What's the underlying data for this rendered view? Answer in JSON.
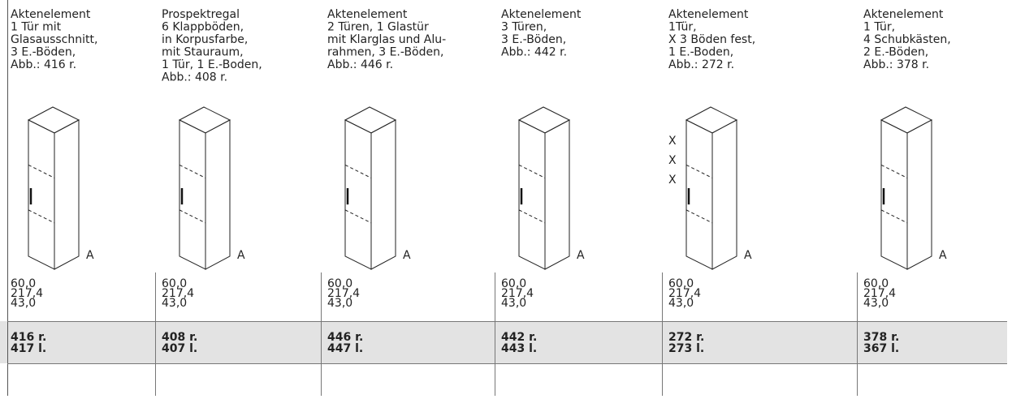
{
  "columns": [
    {
      "description": [
        "Aktenelement",
        "1 Tür mit",
        "Glasausschnitt,",
        "3 E.-Böden,",
        "Abb.: 416 r."
      ],
      "marker": "A",
      "dimensions": [
        "60,0",
        "217,4",
        "43,0"
      ],
      "article_numbers": [
        "416 r.",
        "417 l."
      ]
    },
    {
      "description": [
        "Prospektregal",
        "6 Klappböden,",
        "in Korpusfarbe,",
        "mit Stauraum,",
        "1 Tür, 1 E.-Boden,",
        "Abb.: 408 r."
      ],
      "marker": "A",
      "dimensions": [
        "60,0",
        "217,4",
        "43,0"
      ],
      "article_numbers": [
        "408 r.",
        "407 l."
      ]
    },
    {
      "description": [
        "Aktenelement",
        "2 Türen, 1 Glastür",
        "mit Klarglas und Alu-",
        "rahmen, 3 E.-Böden,",
        "Abb.: 446 r."
      ],
      "marker": "A",
      "dimensions": [
        "60,0",
        "217,4",
        "43,0"
      ],
      "article_numbers": [
        "446 r.",
        "447 l."
      ]
    },
    {
      "description": [
        "Aktenelement",
        "3 Türen,",
        "3 E.-Böden,",
        "Abb.: 442 r."
      ],
      "marker": "A",
      "dimensions": [
        "60,0",
        "217,4",
        "43,0"
      ],
      "article_numbers": [
        "442 r.",
        "443 l."
      ]
    },
    {
      "description": [
        "Aktenelement",
        "1Tür,",
        "X 3 Böden fest,",
        "1 E.-Boden,",
        "Abb.: 272 r."
      ],
      "marker": "A",
      "shelf_marks": [
        "X",
        "X",
        "X"
      ],
      "dimensions": [
        "60,0",
        "217,4",
        "43,0"
      ],
      "article_numbers": [
        "272 r.",
        "273 l."
      ]
    },
    {
      "description": [
        "Aktenelement",
        "1 Tür,",
        "4 Schubkästen,",
        "2 E.-Böden,",
        "Abb.: 378 r."
      ],
      "marker": "A",
      "dimensions": [
        "60,0",
        "217,4",
        "43,0"
      ],
      "article_numbers": [
        "378 r.",
        "367 l."
      ]
    }
  ]
}
